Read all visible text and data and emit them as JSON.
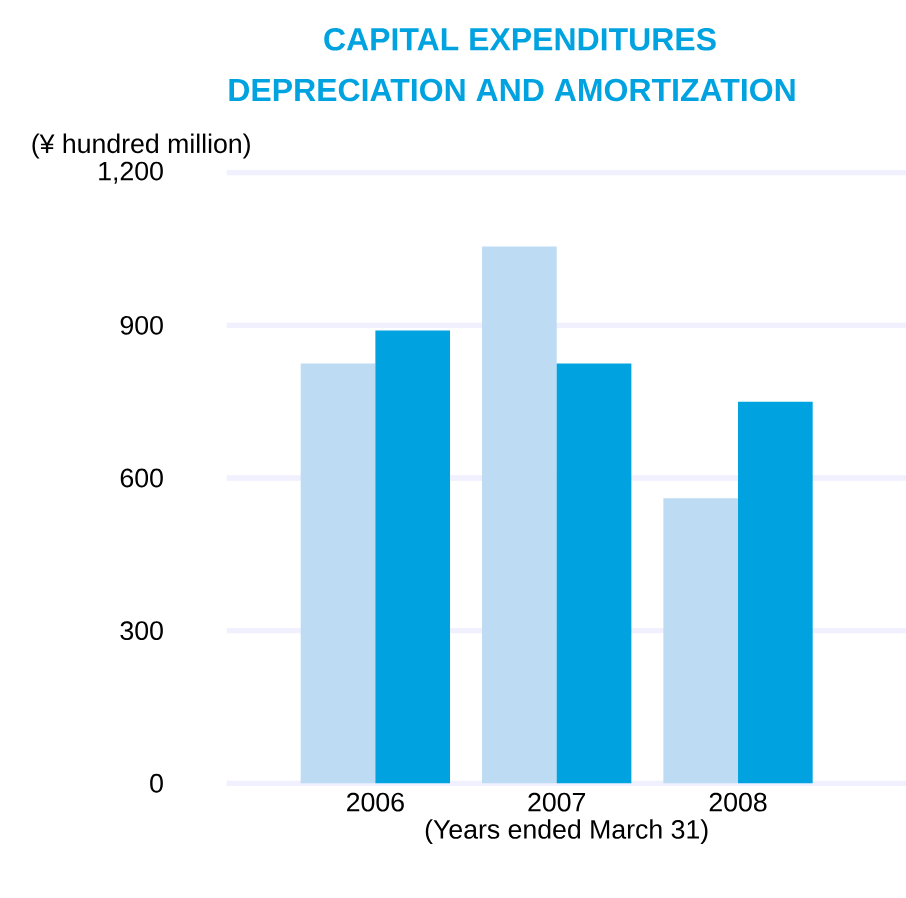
{
  "chart_data": {
    "type": "bar",
    "title": "CAPITAL EXPENDITURES",
    "subtitle": "DEPRECIATION AND AMORTIZATION",
    "ylabel": "(¥ hundred million)",
    "xlabel": "(Years ended March 31)",
    "categories": [
      "2006",
      "2007",
      "2008"
    ],
    "series": [
      {
        "color": "#bddcf4",
        "values": [
          825,
          1055,
          560
        ]
      },
      {
        "color": "#00a3e0",
        "values": [
          890,
          825,
          750
        ]
      }
    ],
    "ylim": [
      0,
      1200
    ],
    "yticks": [
      0,
      300,
      600,
      900,
      {
        "value": 1200,
        "label": "1,200"
      }
    ],
    "grid": "y"
  }
}
